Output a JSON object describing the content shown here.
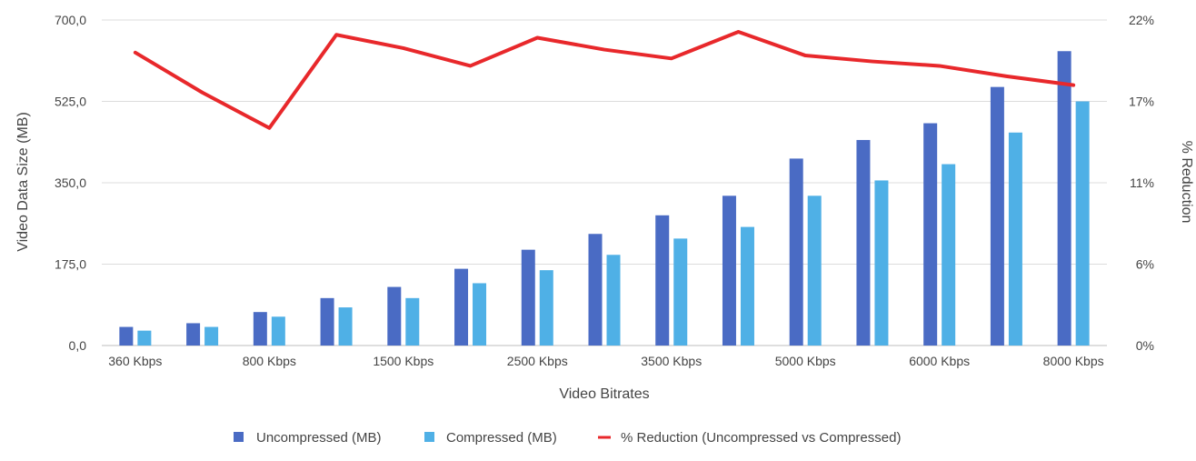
{
  "chart_data": {
    "type": "bar",
    "xlabel": "Video Bitrates",
    "ylabel": "Video Data Size (MB)",
    "y2label": "% Reduction",
    "ylim": [
      0,
      700
    ],
    "y2lim": [
      0,
      22
    ],
    "y_ticks": [
      "0,0",
      "175,0",
      "350,0",
      "525,0",
      "700,0"
    ],
    "y2_ticks": [
      "0%",
      "6%",
      "11%",
      "17%",
      "22%"
    ],
    "categories": [
      "360 Kbps",
      "",
      "800 Kbps",
      "",
      "1500 Kbps",
      "",
      "2500 Kbps",
      "",
      "3500 Kbps",
      "",
      "5000 Kbps",
      "",
      "6000 Kbps",
      "",
      "8000 Kbps"
    ],
    "series": [
      {
        "name": "Uncompressed (MB)",
        "type": "bar",
        "axis": "left",
        "color": "#4a6bc4",
        "values": [
          40,
          48,
          72,
          102,
          126,
          165,
          206,
          240,
          280,
          322,
          402,
          442,
          478,
          556,
          633
        ]
      },
      {
        "name": "Compressed (MB)",
        "type": "bar",
        "axis": "left",
        "color": "#4fb0e6",
        "values": [
          32,
          40,
          62,
          82,
          102,
          134,
          162,
          195,
          230,
          255,
          322,
          355,
          390,
          458,
          525
        ]
      },
      {
        "name": "% Reduction (Uncompressed vs Compressed)",
        "type": "line",
        "axis": "right",
        "color": "#e8282b",
        "values": [
          19.8,
          17.1,
          14.7,
          21.0,
          20.1,
          18.9,
          20.8,
          20.0,
          19.4,
          21.2,
          19.6,
          19.2,
          18.9,
          18.2,
          17.6
        ]
      }
    ],
    "grid": true,
    "legend": "bottom"
  }
}
